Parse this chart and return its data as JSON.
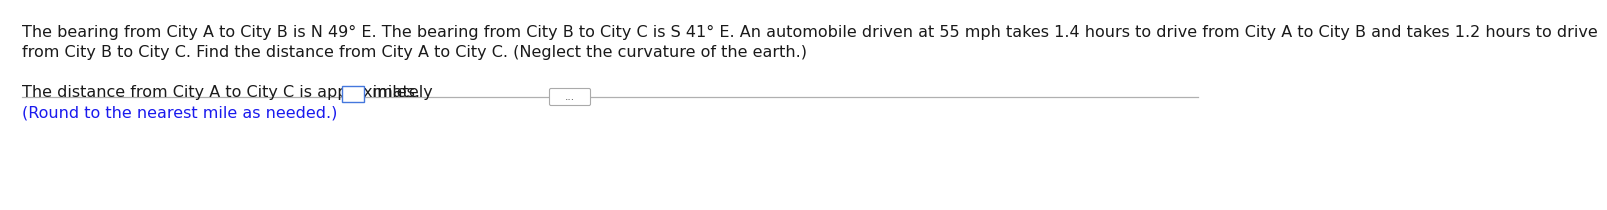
{
  "line1": "The bearing from City A to City B is N 49° E. The bearing from City B to City C is S 41° E. An automobile driven at 55 mph takes 1.4 hours to drive from City A to City B and takes 1.2 hours to drive",
  "line2": "from City B to City C. Find the distance from City A to City C. (Neglect the curvature of the earth.)",
  "bottom_line1_before_box": "The distance from City A to City C is approximately ",
  "bottom_line1_after_box": " miles.",
  "bottom_line2": "(Round to the nearest mile as needed.)",
  "bg_color": "#ffffff",
  "text_color": "#1a1a1a",
  "blue_color": "#1a1aee",
  "font_size": 11.5,
  "dots_label": "..."
}
